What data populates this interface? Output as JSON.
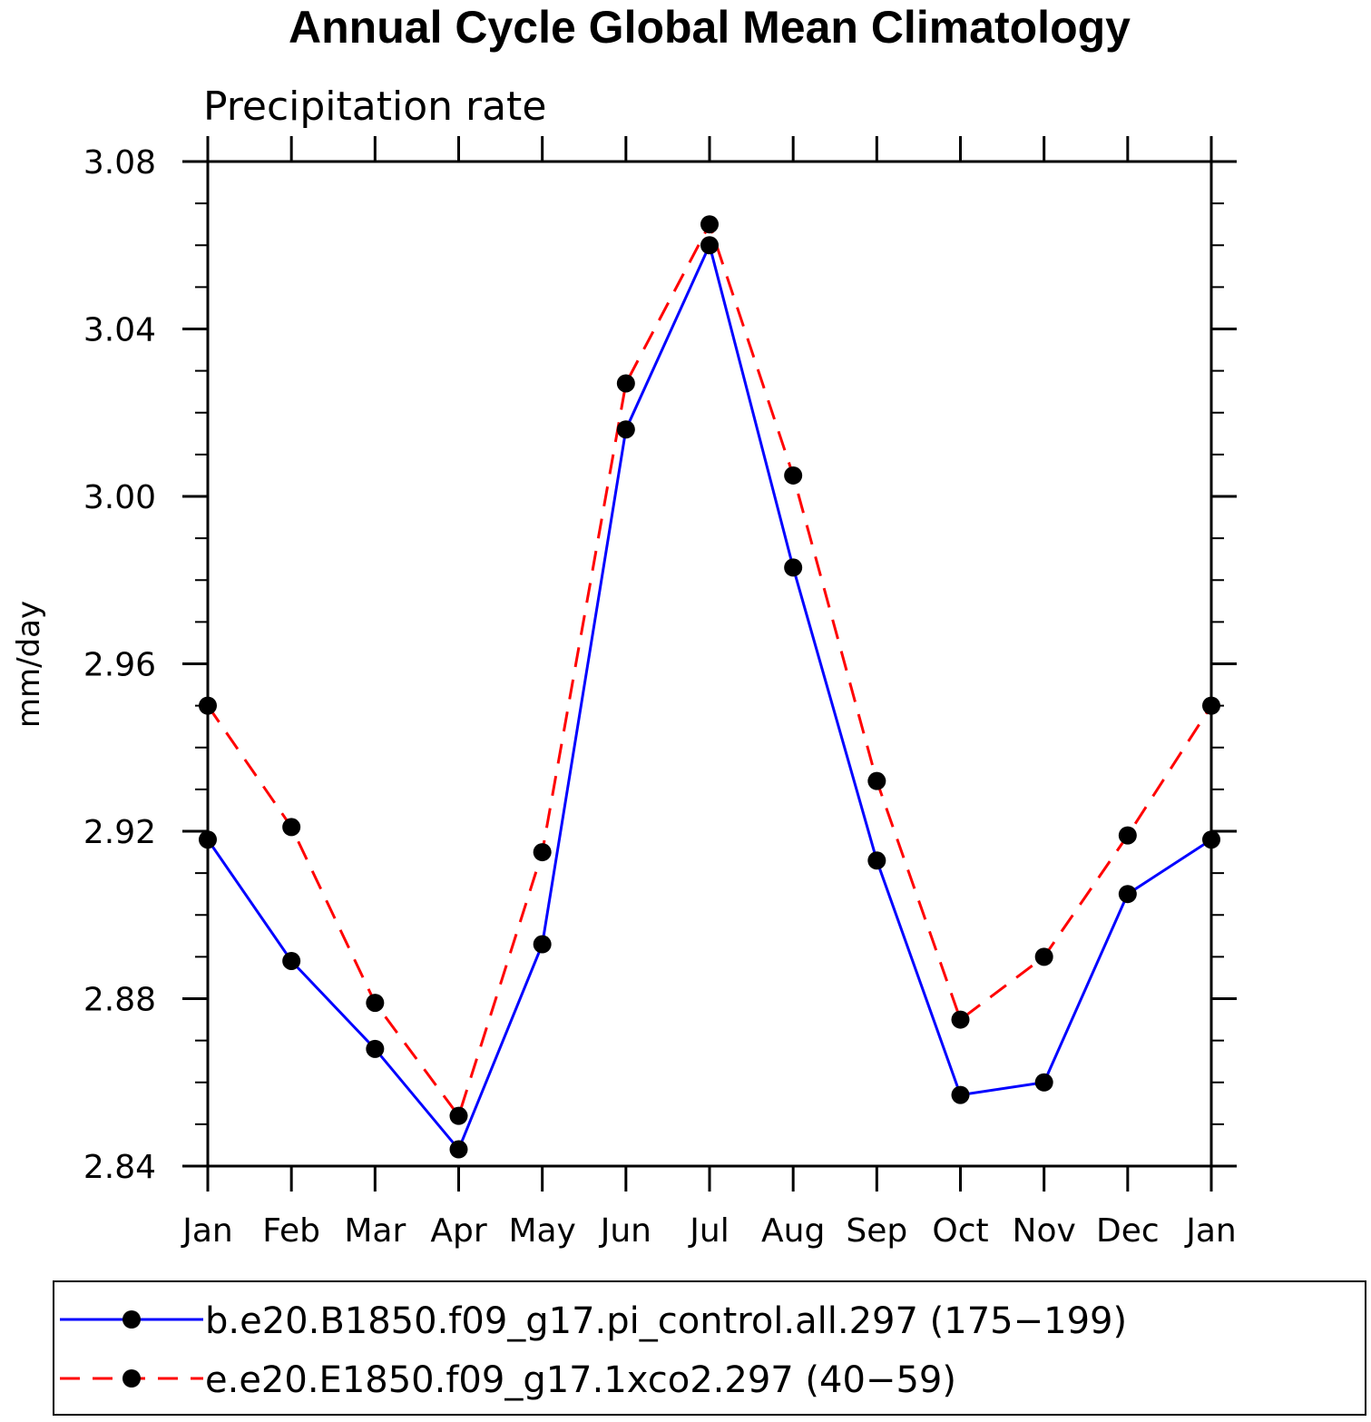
{
  "chart_data": {
    "type": "line",
    "title": "Annual Cycle Global Mean Climatology",
    "subtitle": "Precipitation rate",
    "xlabel": "",
    "ylabel": "mm/day",
    "categories": [
      "Jan",
      "Feb",
      "Mar",
      "Apr",
      "May",
      "Jun",
      "Jul",
      "Aug",
      "Sep",
      "Oct",
      "Nov",
      "Dec",
      "Jan"
    ],
    "ylim": [
      2.84,
      3.08
    ],
    "yticks": [
      "2.84",
      "2.88",
      "2.92",
      "2.96",
      "3.00",
      "3.04",
      "3.08"
    ],
    "legend_position": "bottom",
    "series": [
      {
        "name": "b.e20.B1850.f09_g17.pi_control.all.297 (175−199)",
        "color": "#0000ff",
        "dash": "solid",
        "marker": "filled-circle",
        "values": [
          2.918,
          2.889,
          2.868,
          2.844,
          2.893,
          3.016,
          3.06,
          2.983,
          2.913,
          2.857,
          2.86,
          2.905,
          2.918
        ]
      },
      {
        "name": "e.e20.E1850.f09_g17.1xco2.297 (40−59)",
        "color": "#ff0000",
        "dash": "dashed",
        "marker": "filled-circle",
        "values": [
          2.95,
          2.921,
          2.879,
          2.852,
          2.915,
          3.027,
          3.065,
          3.005,
          2.932,
          2.875,
          2.89,
          2.919,
          2.95
        ]
      }
    ]
  }
}
